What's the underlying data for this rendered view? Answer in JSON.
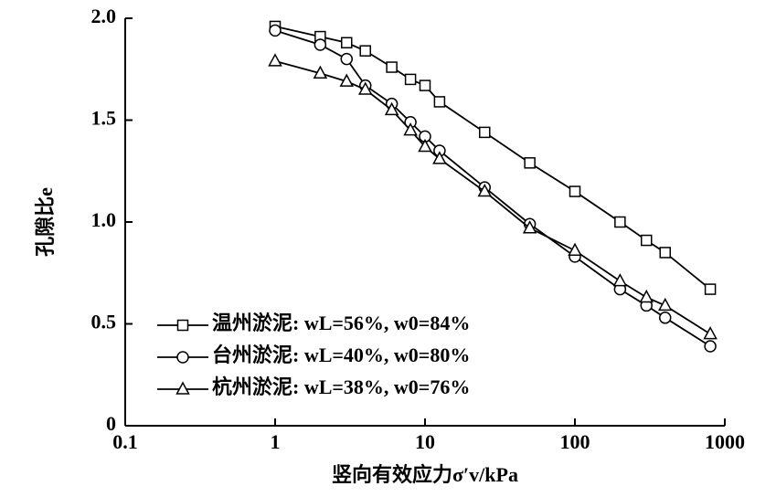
{
  "chart_data": {
    "type": "line",
    "xlabel": "竖向有效应力σ′v/kPa",
    "ylabel": "孔隙比e",
    "x": [
      1,
      2,
      3,
      4,
      6,
      8,
      10,
      12.5,
      25,
      50,
      100,
      200,
      300,
      400,
      800
    ],
    "series": [
      {
        "name": "温州淤泥: wL=56%, w0=84%",
        "color": "#000000",
        "marker": "square",
        "values": [
          1.96,
          1.91,
          1.88,
          1.84,
          1.76,
          1.7,
          1.67,
          1.59,
          1.44,
          1.29,
          1.15,
          1.0,
          0.91,
          0.85,
          0.67
        ]
      },
      {
        "name": "台州淤泥: wL=40%, w0=80%",
        "color": "#000000",
        "marker": "circle",
        "values": [
          1.94,
          1.87,
          1.8,
          1.67,
          1.58,
          1.49,
          1.42,
          1.35,
          1.17,
          0.99,
          0.83,
          0.67,
          0.59,
          0.53,
          0.39
        ]
      },
      {
        "name": "杭州淤泥: wL=38%, w0=76%",
        "color": "#000000",
        "marker": "triangle",
        "values": [
          1.79,
          1.73,
          1.69,
          1.65,
          1.55,
          1.45,
          1.37,
          1.31,
          1.15,
          0.97,
          0.86,
          0.71,
          0.63,
          0.59,
          0.45
        ]
      }
    ],
    "xscale": "log",
    "xlim": [
      0.1,
      1000
    ],
    "xticks": [
      0.1,
      1,
      10,
      100,
      1000
    ],
    "ylim": [
      0,
      2.0
    ],
    "yticks": [
      0,
      0.5,
      {
        "value": 1.0,
        "label": "1.0"
      },
      1.5,
      {
        "value": 2.0,
        "label": "2.0"
      }
    ],
    "legend": "lower left"
  }
}
